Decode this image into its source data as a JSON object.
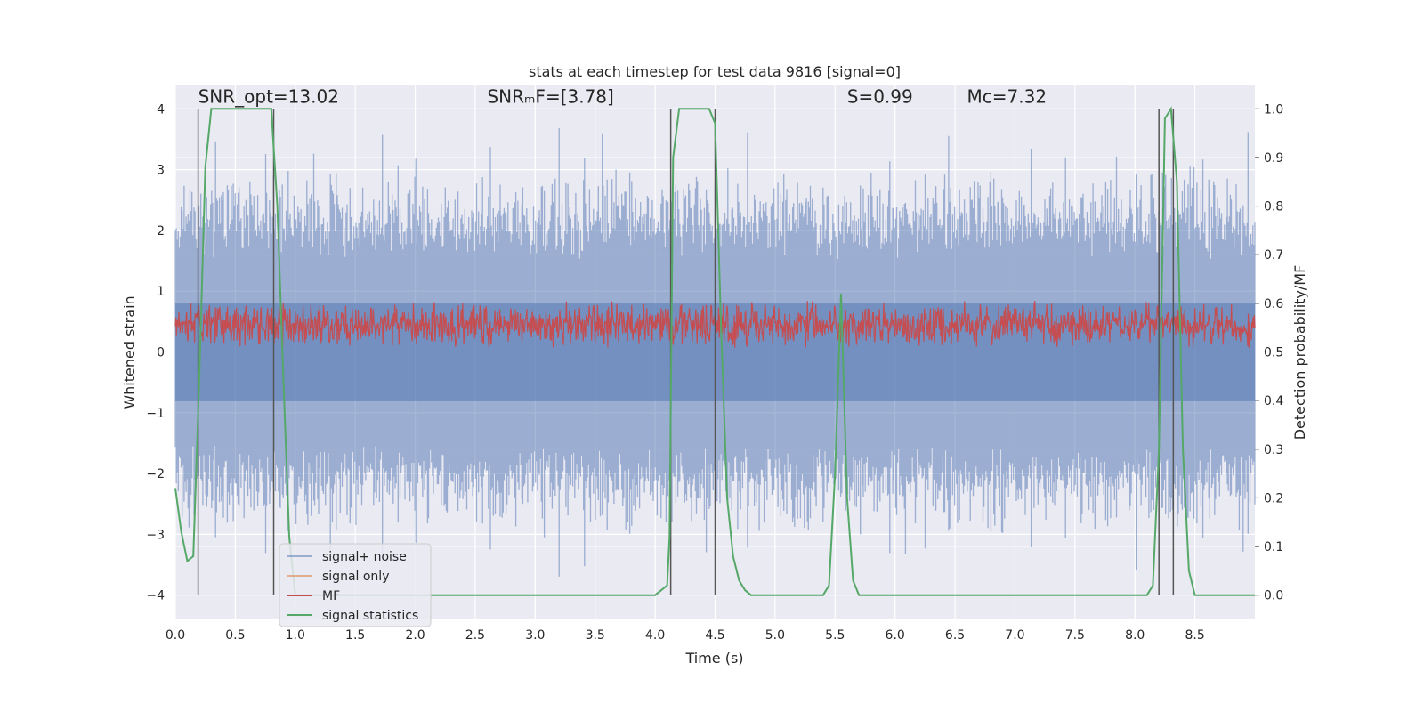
{
  "chart_data": {
    "type": "line",
    "title": "stats at each timestep for test data 9816 [signal=0]",
    "xlabel": "Time (s)",
    "ylabel": "Whitened strain",
    "y2label": "Detection probability/MF",
    "xlim": [
      0.0,
      9.0
    ],
    "ylim": [
      -4.4,
      4.4
    ],
    "y2lim": [
      -0.05,
      1.05
    ],
    "xticks": [
      0.0,
      0.5,
      1.0,
      1.5,
      2.0,
      2.5,
      3.0,
      3.5,
      4.0,
      4.5,
      5.0,
      5.5,
      6.0,
      6.5,
      7.0,
      7.5,
      8.0,
      8.5
    ],
    "xtick_labels": [
      "0.0",
      "0.5",
      "1.0",
      "1.5",
      "2.0",
      "2.5",
      "3.0",
      "3.5",
      "4.0",
      "4.5",
      "5.0",
      "5.5",
      "6.0",
      "6.5",
      "7.0",
      "7.5",
      "8.0",
      "8.5"
    ],
    "yticks": [
      -4,
      -3,
      -2,
      -1,
      0,
      1,
      2,
      3,
      4
    ],
    "ytick_labels": [
      "−4",
      "−3",
      "−2",
      "−1",
      "0",
      "1",
      "2",
      "3",
      "4"
    ],
    "y2ticks": [
      0.0,
      0.1,
      0.2,
      0.3,
      0.4,
      0.5,
      0.6,
      0.7,
      0.8,
      0.9,
      1.0
    ],
    "y2tick_labels": [
      "0.0",
      "0.1",
      "0.2",
      "0.3",
      "0.4",
      "0.5",
      "0.6",
      "0.7",
      "0.8",
      "0.9",
      "1.0"
    ],
    "annotations": [
      {
        "name": "snr-opt",
        "text": "SNR_opt=13.02",
        "x": 0.19,
        "y": 4.1
      },
      {
        "name": "snr-mf",
        "text": "SNRₘF=[3.78]",
        "x": 2.6,
        "y": 4.1
      },
      {
        "name": "s-value",
        "text": "S=0.99",
        "x": 5.6,
        "y": 4.1
      },
      {
        "name": "mc-value",
        "text": "Mc=7.32",
        "x": 6.6,
        "y": 4.1
      }
    ],
    "series": [
      {
        "name": "signal+ noise",
        "color": "#4c72b0",
        "axis": "left",
        "description": "whitened noise trace, amplitude mostly within ±2.5, peaks to ±3.5",
        "envelope": {
          "typical": 2.2,
          "max": 3.6
        }
      },
      {
        "name": "signal only",
        "color": "#dd8452",
        "axis": "left",
        "values": []
      },
      {
        "name": "MF",
        "color": "#c44e52",
        "axis": "left",
        "description": "matched filter output, band from 0.0 to 0.9",
        "band": [
          0.05,
          0.85
        ]
      },
      {
        "name": "signal statistics",
        "color": "#55a868",
        "axis": "right",
        "x": [
          0.0,
          0.05,
          0.1,
          0.15,
          0.2,
          0.25,
          0.3,
          0.8,
          0.85,
          0.9,
          0.95,
          1.0,
          2.0,
          4.0,
          4.1,
          4.12,
          4.15,
          4.2,
          4.45,
          4.5,
          4.55,
          4.6,
          4.65,
          4.7,
          4.75,
          4.8,
          5.4,
          5.45,
          5.5,
          5.55,
          5.6,
          5.65,
          5.7,
          5.8,
          8.1,
          8.15,
          8.2,
          8.25,
          8.3,
          8.35,
          8.4,
          8.45,
          8.5,
          8.6,
          9.0
        ],
        "y": [
          0.22,
          0.13,
          0.07,
          0.08,
          0.45,
          0.88,
          1.0,
          1.0,
          0.8,
          0.45,
          0.12,
          0.0,
          0.0,
          0.0,
          0.02,
          0.12,
          0.9,
          1.0,
          1.0,
          0.97,
          0.55,
          0.2,
          0.08,
          0.03,
          0.01,
          0.0,
          0.0,
          0.02,
          0.25,
          0.62,
          0.2,
          0.03,
          0.0,
          0.0,
          0.0,
          0.02,
          0.3,
          0.98,
          1.0,
          0.85,
          0.3,
          0.05,
          0.0,
          0.0,
          0.0
        ]
      }
    ],
    "vlines": [
      0.19,
      0.82,
      4.13,
      4.5,
      8.2,
      8.32
    ],
    "vline_color": "#555555",
    "legend": {
      "position": "lower-left",
      "entries": [
        {
          "label": "signal+ noise",
          "color": "#4c72b0"
        },
        {
          "label": "signal only",
          "color": "#dd8452"
        },
        {
          "label": "MF",
          "color": "#c44e52"
        },
        {
          "label": "signal statistics",
          "color": "#55a868"
        }
      ]
    },
    "grid": true,
    "style": {
      "plot_bg": "#eaeaf2",
      "grid_color": "#ffffff"
    }
  }
}
